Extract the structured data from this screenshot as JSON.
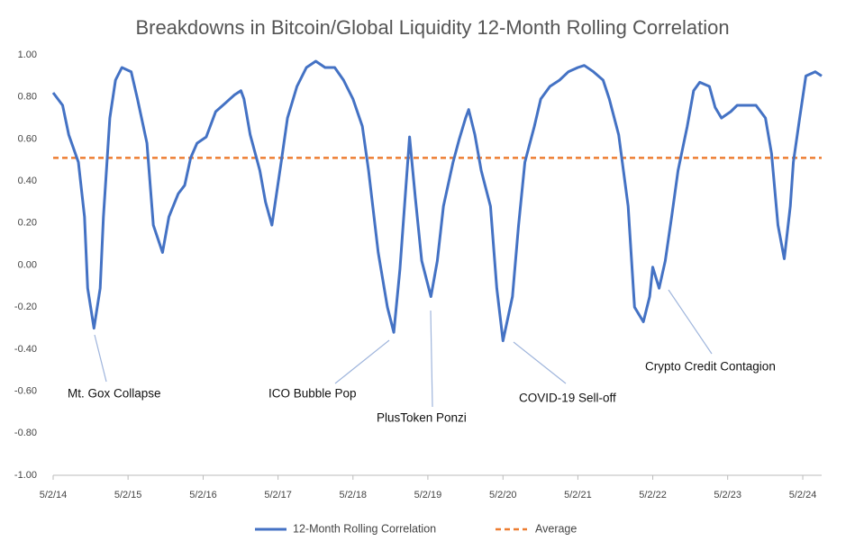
{
  "chart_data": {
    "type": "line",
    "title": "Breakdowns in Bitcoin/Global Liquidity 12-Month Rolling Correlation",
    "x": [
      "2014-05-02",
      "2014-06-17",
      "2014-07-17",
      "2014-09-02",
      "2014-10-02",
      "2014-10-17",
      "2014-11-17",
      "2014-12-17",
      "2015-01-02",
      "2015-02-02",
      "2015-03-02",
      "2015-04-02",
      "2015-05-17",
      "2015-06-17",
      "2015-08-02",
      "2015-09-02",
      "2015-10-17",
      "2015-11-17",
      "2016-01-02",
      "2016-02-02",
      "2016-03-02",
      "2016-04-02",
      "2016-05-17",
      "2016-07-02",
      "2016-08-17",
      "2016-10-02",
      "2016-11-02",
      "2016-11-17",
      "2016-12-17",
      "2017-02-02",
      "2017-03-02",
      "2017-04-02",
      "2017-05-17",
      "2017-06-17",
      "2017-08-02",
      "2017-09-17",
      "2017-11-02",
      "2017-12-17",
      "2018-02-02",
      "2018-03-17",
      "2018-05-02",
      "2018-06-17",
      "2018-07-17",
      "2018-09-02",
      "2018-10-17",
      "2018-11-17",
      "2018-12-17",
      "2019-01-17",
      "2019-02-02",
      "2019-03-02",
      "2019-04-02",
      "2019-05-17",
      "2019-06-17",
      "2019-07-17",
      "2019-09-02",
      "2019-10-02",
      "2019-11-02",
      "2019-11-17",
      "2019-12-17",
      "2020-01-17",
      "2020-03-02",
      "2020-04-02",
      "2020-05-02",
      "2020-06-17",
      "2020-07-17",
      "2020-08-17",
      "2020-10-02",
      "2020-11-02",
      "2020-12-17",
      "2021-02-02",
      "2021-03-17",
      "2021-05-02",
      "2021-06-02",
      "2021-07-17",
      "2021-09-02",
      "2021-10-02",
      "2021-11-17",
      "2022-01-02",
      "2022-02-02",
      "2022-03-17",
      "2022-04-17",
      "2022-05-02",
      "2022-06-02",
      "2022-07-02",
      "2022-08-02",
      "2022-09-02",
      "2022-10-17",
      "2022-11-17",
      "2022-12-17",
      "2023-02-02",
      "2023-03-02",
      "2023-04-02",
      "2023-05-17",
      "2023-06-17",
      "2023-08-02",
      "2023-09-17",
      "2023-11-02",
      "2023-12-02",
      "2024-01-02",
      "2024-02-02",
      "2024-03-02",
      "2024-03-17",
      "2024-04-17",
      "2024-05-17",
      "2024-07-02",
      "2024-08-02"
    ],
    "series": [
      {
        "name": "12-Month Rolling Correlation",
        "color": "#4472c4",
        "values": [
          0.82,
          0.76,
          0.62,
          0.49,
          0.23,
          -0.11,
          -0.3,
          -0.11,
          0.23,
          0.7,
          0.88,
          0.94,
          0.92,
          0.79,
          0.58,
          0.19,
          0.06,
          0.23,
          0.34,
          0.38,
          0.51,
          0.58,
          0.61,
          0.73,
          0.77,
          0.81,
          0.83,
          0.79,
          0.62,
          0.45,
          0.3,
          0.19,
          0.49,
          0.7,
          0.85,
          0.94,
          0.97,
          0.94,
          0.94,
          0.88,
          0.79,
          0.66,
          0.45,
          0.06,
          -0.2,
          -0.32,
          -0.02,
          0.4,
          0.61,
          0.32,
          0.02,
          -0.15,
          0.02,
          0.28,
          0.49,
          0.6,
          0.7,
          0.74,
          0.62,
          0.45,
          0.28,
          -0.11,
          -0.36,
          -0.15,
          0.19,
          0.49,
          0.66,
          0.79,
          0.85,
          0.88,
          0.92,
          0.94,
          0.95,
          0.92,
          0.88,
          0.79,
          0.62,
          0.28,
          -0.2,
          -0.27,
          -0.15,
          -0.01,
          -0.11,
          0.02,
          0.23,
          0.45,
          0.66,
          0.83,
          0.87,
          0.85,
          0.75,
          0.7,
          0.73,
          0.76,
          0.76,
          0.76,
          0.7,
          0.53,
          0.19,
          0.03,
          0.28,
          0.49,
          0.7,
          0.9,
          0.92,
          0.9
        ]
      }
    ],
    "hlines": [
      {
        "name": "Average",
        "value": 0.51,
        "color": "#ed7d31",
        "dashed": true
      }
    ],
    "annotations": [
      "Mt. Gox Collapse",
      "ICO Bubble Pop",
      "PlusToken Ponzi",
      "COVID-19 Sell-off",
      "Crypto Credit Contagion"
    ],
    "xlim": [
      "2014-05-02",
      "2024-08-02"
    ],
    "xticks": [
      {
        "value": "2014-05-02",
        "label": "5/2/14"
      },
      {
        "value": "2015-05-02",
        "label": "5/2/15"
      },
      {
        "value": "2016-05-02",
        "label": "5/2/16"
      },
      {
        "value": "2017-05-02",
        "label": "5/2/17"
      },
      {
        "value": "2018-05-02",
        "label": "5/2/18"
      },
      {
        "value": "2019-05-02",
        "label": "5/2/19"
      },
      {
        "value": "2020-05-02",
        "label": "5/2/20"
      },
      {
        "value": "2021-05-02",
        "label": "5/2/21"
      },
      {
        "value": "2022-05-02",
        "label": "5/2/22"
      },
      {
        "value": "2023-05-02",
        "label": "5/2/23"
      },
      {
        "value": "2024-05-02",
        "label": "5/2/24"
      }
    ],
    "ylim": [
      -1,
      1
    ],
    "yticks": [
      {
        "value": 1,
        "label": "1.00"
      },
      {
        "value": 0.8,
        "label": "0.80"
      },
      {
        "value": 0.6,
        "label": "0.60"
      },
      {
        "value": 0.4,
        "label": "0.40"
      },
      {
        "value": 0.2,
        "label": "0.20"
      },
      {
        "value": 0,
        "label": "0.00"
      },
      {
        "value": -0.2,
        "label": "-0.20"
      },
      {
        "value": -0.4,
        "label": "-0.40"
      },
      {
        "value": -0.6,
        "label": "-0.60"
      },
      {
        "value": -0.8,
        "label": "-0.80"
      },
      {
        "value": -1,
        "label": "-1.00"
      }
    ],
    "grid": false,
    "legend": "bottom"
  }
}
